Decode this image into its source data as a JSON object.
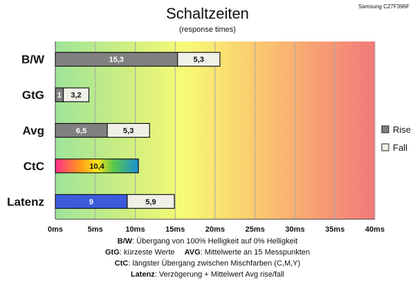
{
  "header": {
    "title": "Schaltzeiten",
    "subtitle": "(response times)",
    "model": "Samsung C27F396F"
  },
  "legend": [
    {
      "name": "Rise",
      "color": "#808080"
    },
    {
      "name": "Fall",
      "color": "#f0f0e8"
    }
  ],
  "notes": [
    {
      "label": "B/W",
      "text": ":  Übergang von 100% Helligkeit auf 0% Helligkeit"
    },
    {
      "label": "GtG",
      "text": ": kürzeste  Werte",
      "label2": "AVG",
      "text2": ": Mittelwerte  an 15 Messpunkten"
    },
    {
      "label": "CtC",
      "text": ": längster Übergang  zwischen Mischfarben (C,M,Y)"
    },
    {
      "label": "Latenz",
      "text": ": Verzögerung  + Mittelwert Avg rise/fall"
    }
  ],
  "chart_data": {
    "type": "bar",
    "orientation": "horizontal",
    "stacked": true,
    "title": "Schaltzeiten",
    "subtitle": "(response times)",
    "categories": [
      "B/W",
      "GtG",
      "Avg",
      "CtC",
      "Latenz"
    ],
    "series": [
      {
        "name": "Rise",
        "color": "#808080",
        "values": [
          15.3,
          1,
          6.5,
          null,
          null
        ],
        "labels": [
          "15,3",
          "1",
          "6,5",
          "",
          ""
        ]
      },
      {
        "name": "Fall",
        "color": "#f0f0e8",
        "values": [
          5.3,
          3.2,
          5.3,
          null,
          5.9
        ],
        "labels": [
          "5,3",
          "3,2",
          "5,3",
          "",
          "5,9"
        ]
      },
      {
        "name": "",
        "values": [
          null,
          null,
          null,
          10.4,
          9
        ],
        "labels": [
          "",
          "",
          "",
          "10,4",
          "9"
        ]
      }
    ],
    "special_bar_colors": {
      "CtC": "rainbow-gradient",
      "Latenz": "#3b5bdb"
    },
    "xlim": [
      0,
      40
    ],
    "xticks": [
      0,
      5,
      10,
      15,
      20,
      25,
      30,
      35,
      40
    ],
    "xtick_labels": [
      "0ms",
      "5ms",
      "10ms",
      "15ms",
      "20ms",
      "25ms",
      "30ms",
      "35ms",
      "40ms"
    ],
    "grid": true,
    "legend_position": "right",
    "background": "green-yellow-red gradient"
  }
}
